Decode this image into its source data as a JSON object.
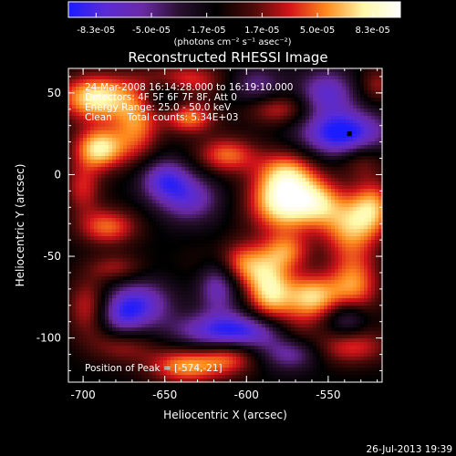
{
  "colors": {
    "background": "#000000",
    "text": "#ffffff",
    "colormap_stops": [
      "#1b1bff",
      "#5a2bd6",
      "#6a2aa6",
      "#2a1030",
      "#000000",
      "#4a0b09",
      "#d3141a",
      "#ff8a1d",
      "#fff9a8",
      "#ffffff"
    ],
    "peak_marker": "#000000"
  },
  "colorbar": {
    "ticks": [
      "-8.3e-05",
      "-5.0e-05",
      "-1.7e-05",
      "1.7e-05",
      "5.0e-05",
      "8.3e-05"
    ],
    "units_label": "(photons cm⁻² s⁻¹ asec⁻²)"
  },
  "annotations": {
    "time_range": "24-Mar-2008 16:14:28.000 to 16:19:10.000",
    "detectors": "Detectors: 4F 5F 6F 7F 8F, Att 0",
    "energy": "Energy Range: 25.0 - 50.0 keV",
    "clean": "Clean     Total counts: 5.34E+03",
    "peak_position": "Position of Peak = [-574,-21]"
  },
  "footer": {
    "timestamp": "26-Jul-2013 19:39"
  },
  "chart_data": {
    "type": "heatmap",
    "title": "Reconstructed RHESSI Image",
    "xlabel": "Heliocentric X (arcsec)",
    "ylabel": "Heliocentric Y (arcsec)",
    "xlim": [
      -709,
      -517
    ],
    "ylim": [
      -127,
      65
    ],
    "xticks": [
      "-700",
      "-650",
      "-600",
      "-550"
    ],
    "yticks": [
      "50",
      "0",
      "-50",
      "-100"
    ],
    "colorbar_range": [
      -8.3e-05,
      8.3e-05
    ],
    "peak": {
      "x": -574,
      "y": -21
    },
    "blobs": [
      {
        "x": -577,
        "y": -17,
        "amp": 1.0,
        "sx": 15,
        "sy": 13
      },
      {
        "x": -575,
        "y": 2,
        "amp": 0.55,
        "sx": 13,
        "sy": 10
      },
      {
        "x": -556,
        "y": -17,
        "amp": 0.48,
        "sx": 10,
        "sy": 10
      },
      {
        "x": -537,
        "y": -31,
        "amp": 0.7,
        "sx": 12,
        "sy": 14
      },
      {
        "x": -522,
        "y": -20,
        "amp": 0.6,
        "sx": 9,
        "sy": 12
      },
      {
        "x": -692,
        "y": 47,
        "amp": 0.92,
        "sx": 16,
        "sy": 10
      },
      {
        "x": -690,
        "y": 16,
        "amp": 0.88,
        "sx": 11,
        "sy": 9
      },
      {
        "x": -667,
        "y": 30,
        "amp": 0.6,
        "sx": 10,
        "sy": 15
      },
      {
        "x": -639,
        "y": 58,
        "amp": 0.55,
        "sx": 18,
        "sy": 7
      },
      {
        "x": -635,
        "y": 35,
        "amp": 0.65,
        "sx": 11,
        "sy": 7
      },
      {
        "x": -612,
        "y": 12,
        "amp": 0.6,
        "sx": 13,
        "sy": 8
      },
      {
        "x": -580,
        "y": 40,
        "amp": 0.45,
        "sx": 14,
        "sy": 7
      },
      {
        "x": -530,
        "y": 10,
        "amp": 0.35,
        "sx": 10,
        "sy": 8
      },
      {
        "x": -700,
        "y": -8,
        "amp": 0.45,
        "sx": 8,
        "sy": 11
      },
      {
        "x": -685,
        "y": -32,
        "amp": 0.6,
        "sx": 13,
        "sy": 8
      },
      {
        "x": -680,
        "y": -57,
        "amp": 0.35,
        "sx": 12,
        "sy": 6
      },
      {
        "x": -697,
        "y": -81,
        "amp": 0.45,
        "sx": 9,
        "sy": 13
      },
      {
        "x": -676,
        "y": -104,
        "amp": 0.4,
        "sx": 14,
        "sy": 8
      },
      {
        "x": -607,
        "y": -55,
        "amp": 0.75,
        "sx": 15,
        "sy": 10
      },
      {
        "x": -586,
        "y": -72,
        "amp": 0.8,
        "sx": 10,
        "sy": 14
      },
      {
        "x": -575,
        "y": -47,
        "amp": 0.5,
        "sx": 10,
        "sy": 8
      },
      {
        "x": -637,
        "y": -117,
        "amp": 0.7,
        "sx": 16,
        "sy": 8
      },
      {
        "x": -610,
        "y": -111,
        "amp": 0.5,
        "sx": 12,
        "sy": 8
      },
      {
        "x": -560,
        "y": -75,
        "amp": 0.8,
        "sx": 12,
        "sy": 10
      },
      {
        "x": -534,
        "y": -68,
        "amp": 0.65,
        "sx": 11,
        "sy": 14
      },
      {
        "x": -536,
        "y": -105,
        "amp": 0.5,
        "sx": 16,
        "sy": 8
      },
      {
        "x": -570,
        "y": -95,
        "amp": 0.35,
        "sx": 10,
        "sy": 8
      },
      {
        "x": -520,
        "y": 55,
        "amp": 0.35,
        "sx": 8,
        "sy": 8
      },
      {
        "x": -541,
        "y": 25,
        "amp": -0.95,
        "sx": 18,
        "sy": 10
      },
      {
        "x": -551,
        "y": 50,
        "amp": -0.6,
        "sx": 12,
        "sy": 10
      },
      {
        "x": -607,
        "y": -96,
        "amp": -0.9,
        "sx": 24,
        "sy": 8
      },
      {
        "x": -617,
        "y": -64,
        "amp": -0.75,
        "sx": 9,
        "sy": 13
      },
      {
        "x": -650,
        "y": -3,
        "amp": -0.65,
        "sx": 11,
        "sy": 9
      },
      {
        "x": -635,
        "y": -15,
        "amp": -0.55,
        "sx": 13,
        "sy": 10
      },
      {
        "x": -664,
        "y": -79,
        "amp": -0.6,
        "sx": 13,
        "sy": 10
      },
      {
        "x": -677,
        "y": -87,
        "amp": -0.5,
        "sx": 10,
        "sy": 10
      },
      {
        "x": -538,
        "y": -88,
        "amp": -0.5,
        "sx": 9,
        "sy": 8
      },
      {
        "x": -594,
        "y": 55,
        "amp": -0.4,
        "sx": 12,
        "sy": 8
      },
      {
        "x": -573,
        "y": -110,
        "amp": -0.45,
        "sx": 12,
        "sy": 7
      },
      {
        "x": -650,
        "y": 50,
        "amp": -0.35,
        "sx": 10,
        "sy": 8
      }
    ],
    "grid": false,
    "legend": "none",
    "marker": {
      "x": -537,
      "y": 25
    }
  }
}
